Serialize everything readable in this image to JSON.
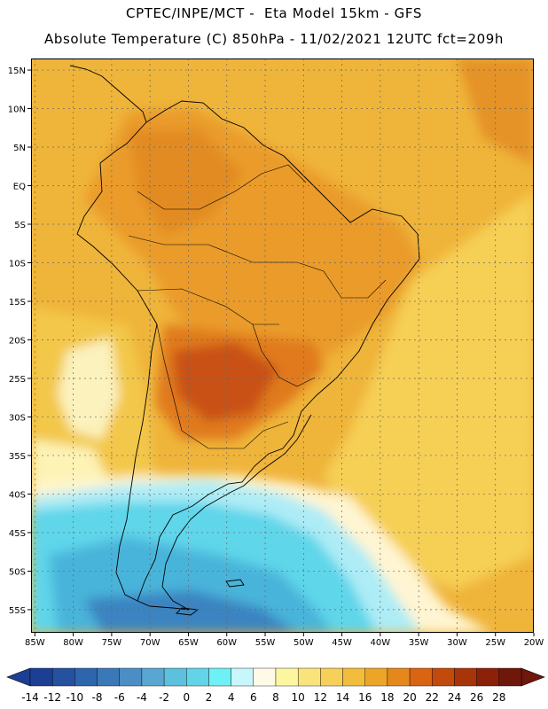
{
  "header": {
    "line1": "CPTEC/INPE/MCT -  Eta Model 15km - GFS",
    "line2": "Absolute Temperature (C) 850hPa - 11/02/2021 12UTC fct=209h"
  },
  "map": {
    "lat_labels": [
      "15N",
      "10N",
      "5N",
      "EQ",
      "5S",
      "10S",
      "15S",
      "20S",
      "25S",
      "30S",
      "35S",
      "40S",
      "45S",
      "50S",
      "55S"
    ],
    "lon_labels": [
      "85W",
      "80W",
      "75W",
      "70W",
      "65W",
      "60W",
      "55W",
      "50W",
      "45W",
      "40W",
      "35W",
      "30W",
      "25W",
      "20W"
    ],
    "lat_values": [
      15,
      10,
      5,
      0,
      -5,
      -10,
      -15,
      -20,
      -25,
      -30,
      -35,
      -40,
      -45,
      -50,
      -55
    ],
    "lon_values": [
      -85,
      -80,
      -75,
      -70,
      -65,
      -60,
      -55,
      -50,
      -45,
      -40,
      -35,
      -30,
      -25,
      -20
    ],
    "extent": {
      "lon_min": -85.5,
      "lon_max": -20,
      "lat_min": -58,
      "lat_max": 16.5
    }
  },
  "colorbar": {
    "labels": [
      "-14",
      "-12",
      "-10",
      "-8",
      "-6",
      "-4",
      "-2",
      "0",
      "2",
      "4",
      "6",
      "8",
      "10",
      "12",
      "14",
      "16",
      "18",
      "20",
      "22",
      "24",
      "26",
      "28"
    ],
    "colors": [
      "#1c3f94",
      "#25529f",
      "#2e66ad",
      "#3b78b8",
      "#4a8ec4",
      "#58a6d2",
      "#5dc0dd",
      "#62d4e8",
      "#6ef0f4",
      "#c7f6fb",
      "#fffae8",
      "#fdf6a0",
      "#f9e47c",
      "#f6d058",
      "#f2bd3c",
      "#eda528",
      "#e5881c",
      "#d96412",
      "#c24a0c",
      "#a83509",
      "#8b2109",
      "#6e180b"
    ]
  }
}
